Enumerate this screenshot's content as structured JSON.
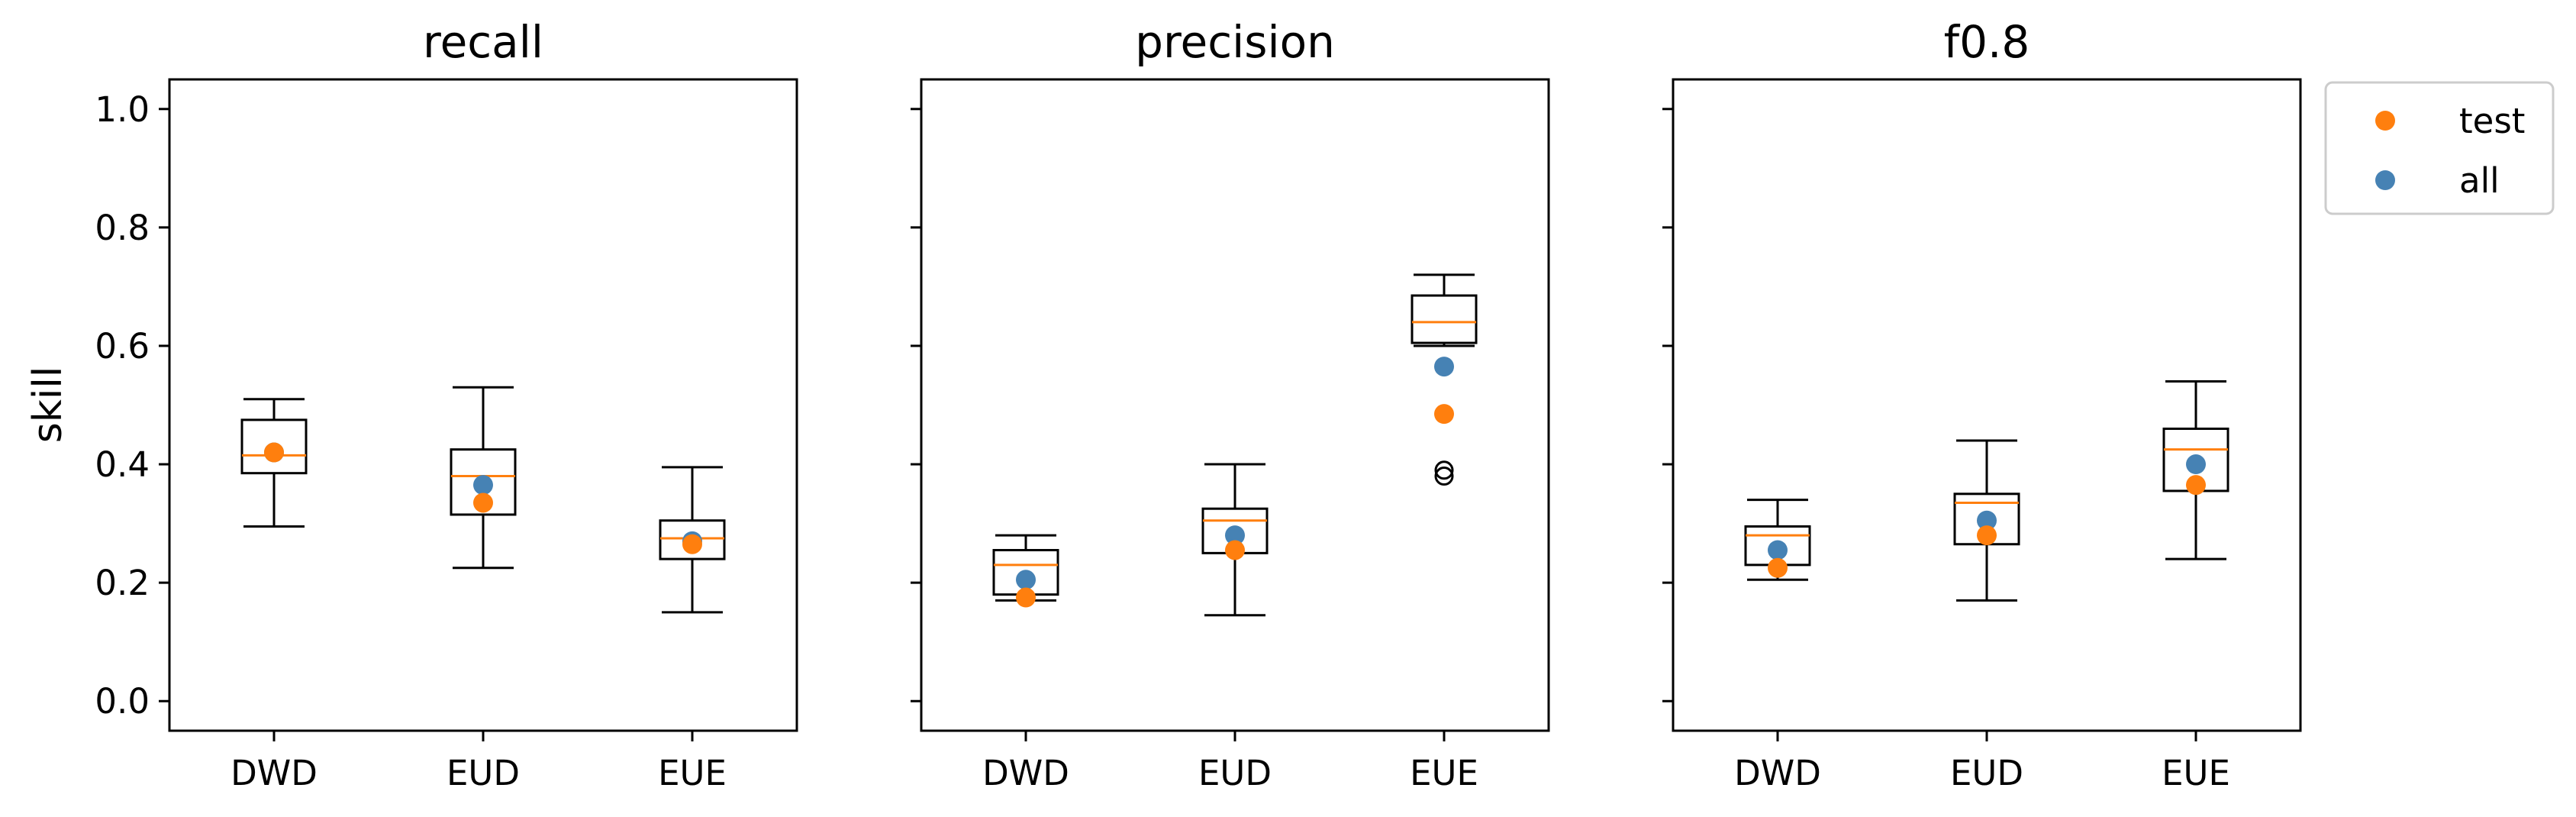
{
  "chart_data": {
    "type": "box",
    "ylabel": "skill",
    "ylim": [
      -0.05,
      1.05
    ],
    "yticks": [
      "0.0",
      "0.2",
      "0.4",
      "0.6",
      "0.8",
      "1.0"
    ],
    "categories": [
      "DWD",
      "EUD",
      "EUE"
    ],
    "colors": {
      "test": "#ff7f0e",
      "all": "#4682b4",
      "median": "#ff7f0e",
      "box": "#000000"
    },
    "legend": {
      "placement": "outside-top-right",
      "entries": [
        {
          "key": "test",
          "label": "test"
        },
        {
          "key": "all",
          "label": "all"
        }
      ]
    },
    "panels": [
      {
        "title": "recall",
        "boxes": [
          {
            "category": "DWD",
            "whisker_low": 0.295,
            "q1": 0.385,
            "median": 0.415,
            "q3": 0.475,
            "whisker_high": 0.51,
            "outliers": [],
            "test": 0.42,
            "all": 0.42
          },
          {
            "category": "EUD",
            "whisker_low": 0.225,
            "q1": 0.315,
            "median": 0.38,
            "q3": 0.425,
            "whisker_high": 0.53,
            "outliers": [],
            "test": 0.335,
            "all": 0.365
          },
          {
            "category": "EUE",
            "whisker_low": 0.15,
            "q1": 0.24,
            "median": 0.275,
            "q3": 0.305,
            "whisker_high": 0.395,
            "outliers": [],
            "test": 0.265,
            "all": 0.27
          }
        ]
      },
      {
        "title": "precision",
        "boxes": [
          {
            "category": "DWD",
            "whisker_low": 0.17,
            "q1": 0.18,
            "median": 0.23,
            "q3": 0.255,
            "whisker_high": 0.28,
            "outliers": [],
            "test": 0.175,
            "all": 0.205
          },
          {
            "category": "EUD",
            "whisker_low": 0.145,
            "q1": 0.25,
            "median": 0.305,
            "q3": 0.325,
            "whisker_high": 0.4,
            "outliers": [],
            "test": 0.255,
            "all": 0.28
          },
          {
            "category": "EUE",
            "whisker_low": 0.6,
            "q1": 0.605,
            "median": 0.64,
            "q3": 0.685,
            "whisker_high": 0.72,
            "outliers": [
              0.39,
              0.38
            ],
            "test": 0.485,
            "all": 0.565
          }
        ]
      },
      {
        "title": "f0.8",
        "boxes": [
          {
            "category": "DWD",
            "whisker_low": 0.205,
            "q1": 0.23,
            "median": 0.28,
            "q3": 0.295,
            "whisker_high": 0.34,
            "outliers": [],
            "test": 0.225,
            "all": 0.255
          },
          {
            "category": "EUD",
            "whisker_low": 0.17,
            "q1": 0.265,
            "median": 0.335,
            "q3": 0.35,
            "whisker_high": 0.44,
            "outliers": [],
            "test": 0.28,
            "all": 0.305
          },
          {
            "category": "EUE",
            "whisker_low": 0.24,
            "q1": 0.355,
            "median": 0.425,
            "q3": 0.46,
            "whisker_high": 0.54,
            "outliers": [],
            "test": 0.365,
            "all": 0.4
          }
        ]
      }
    ]
  }
}
